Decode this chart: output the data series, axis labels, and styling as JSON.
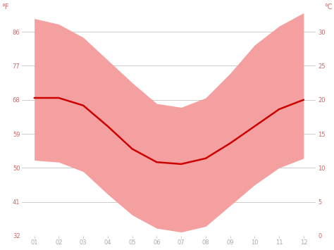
{
  "months": [
    1,
    2,
    3,
    4,
    5,
    6,
    7,
    8,
    9,
    10,
    11,
    12
  ],
  "month_labels": [
    "01",
    "02",
    "03",
    "04",
    "05",
    "06",
    "07",
    "08",
    "09",
    "10",
    "11",
    "12"
  ],
  "avg_temp_f": [
    68.5,
    68.5,
    66.5,
    61.0,
    55.0,
    51.5,
    51.0,
    52.5,
    56.5,
    61.0,
    65.5,
    68.0
  ],
  "band_upper_f": [
    89.5,
    88.0,
    84.5,
    78.5,
    72.5,
    67.0,
    66.0,
    68.5,
    75.0,
    82.5,
    87.5,
    91.0
  ],
  "band_lower_f": [
    52.0,
    51.5,
    49.0,
    43.0,
    37.5,
    34.0,
    33.0,
    34.5,
    40.0,
    45.5,
    50.0,
    52.5
  ],
  "line_color": "#cc0000",
  "band_color": "#f5a0a0",
  "background_color": "#ffffff",
  "grid_color": "#cccccc",
  "axis_label_color": "#cc6666",
  "ylim_f": [
    32,
    91
  ],
  "yticks_f": [
    32,
    41,
    50,
    59,
    68,
    77,
    86
  ],
  "yticks_c": [
    0,
    5,
    10,
    15,
    20,
    25,
    30
  ],
  "grid_lines_f": [
    86,
    77,
    68,
    59,
    50,
    41
  ],
  "label_left": "°F",
  "label_right": "°C",
  "top_tick_label_f": "86",
  "top_tick_label_c": "30"
}
